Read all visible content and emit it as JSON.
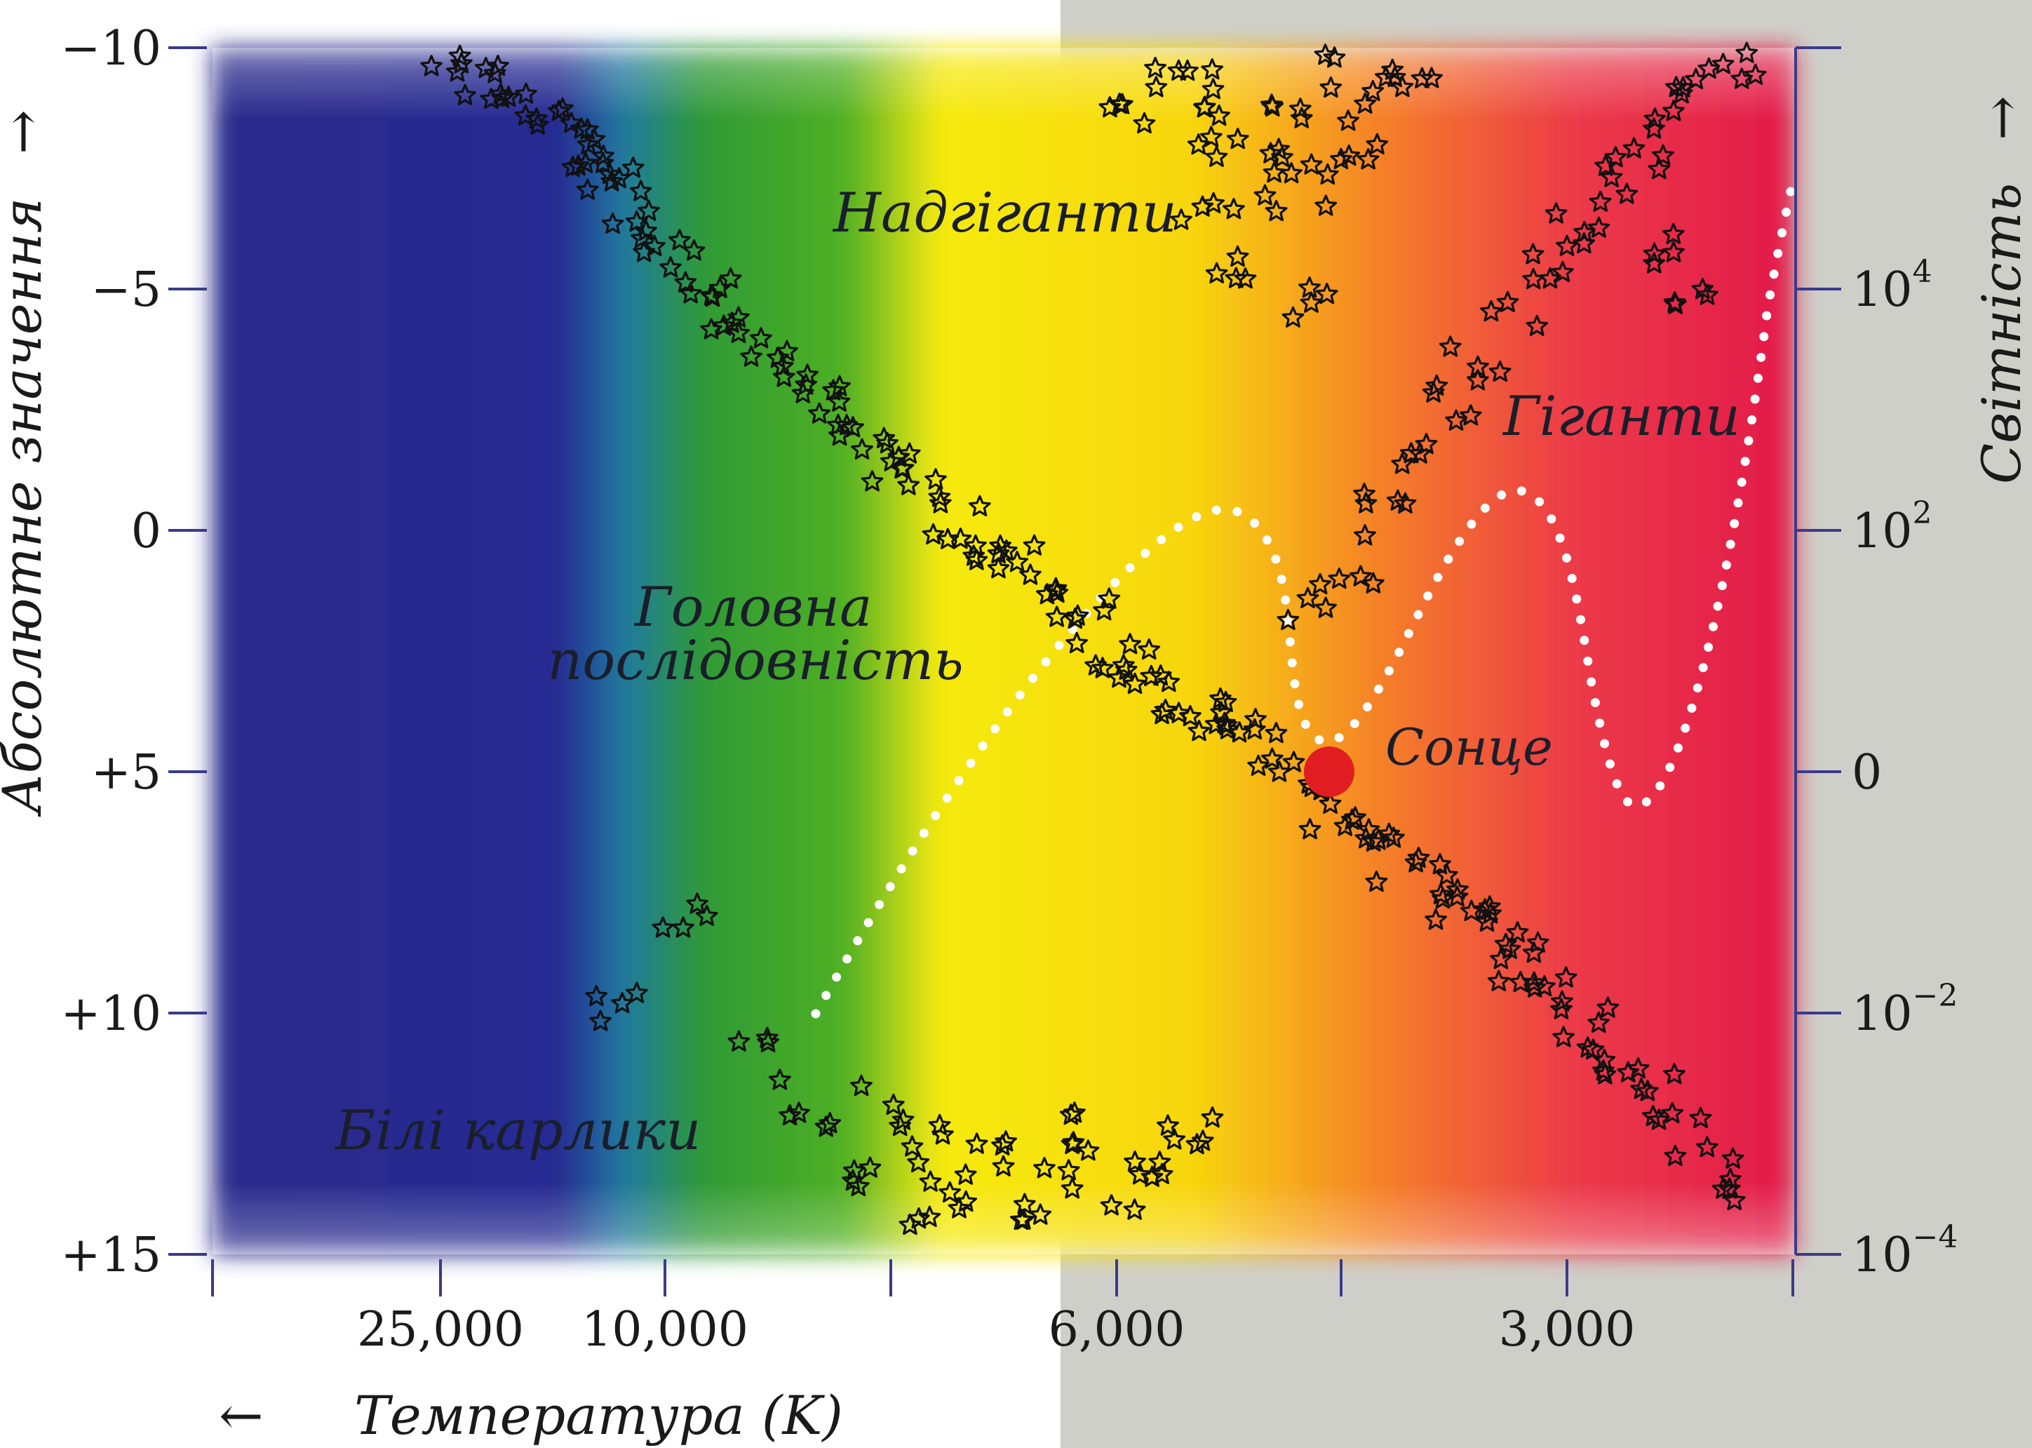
{
  "colors": {
    "spectrum": [
      "#2b2a8c",
      "#262c92",
      "#1f7aa0",
      "#2f9a35",
      "#4fb024",
      "#f6ea10",
      "#f8d60e",
      "#f57f28",
      "#ec3a48",
      "#e21a48"
    ],
    "sun": "#e21d22",
    "right_background": "#cfcfc9",
    "track": "#ffffff",
    "axis_line": "#3a3a8a"
  },
  "chart_data": {
    "type": "scatter",
    "title": "",
    "xlabel": "Температура (K)",
    "ylabel_left": "Абсолютне значення",
    "ylabel_right": "Світність",
    "ylim_abs_mag": [
      -10,
      15
    ],
    "y_inverted": true,
    "x_tick_labels": [
      "25,000",
      "10,000",
      "6,000",
      "3,000"
    ],
    "y_left_ticks": [
      "−10",
      "−5",
      "0",
      "+5",
      "+10",
      "+15"
    ],
    "y_right_ticks": [
      {
        "base": "10",
        "exp": "4"
      },
      {
        "base": "10",
        "exp": "2"
      },
      {
        "base": "0",
        "exp": ""
      },
      {
        "base": "10",
        "exp": "−2"
      },
      {
        "base": "10",
        "exp": "−4"
      }
    ],
    "labels": {
      "supergiants": "Надгіганти",
      "giants": "Гіганти",
      "main_sequence_line1": "Головна",
      "main_sequence_line2": "послідовність",
      "white_dwarfs": "Білі карлики",
      "sun": "Сонце"
    },
    "sun": {
      "abs_mag": 5
    },
    "series": [
      {
        "group": "main_sequence",
        "points": [
          [
            0.15,
            -10
          ],
          [
            0.17,
            -9.3
          ],
          [
            0.19,
            -8.9
          ],
          [
            0.21,
            -8.4
          ],
          [
            0.23,
            -7.9
          ],
          [
            0.24,
            -7.5
          ],
          [
            0.26,
            -7.0
          ],
          [
            0.27,
            -6.4
          ],
          [
            0.29,
            -5.9
          ],
          [
            0.31,
            -5.2
          ],
          [
            0.33,
            -4.6
          ],
          [
            0.35,
            -3.9
          ],
          [
            0.37,
            -3.2
          ],
          [
            0.39,
            -2.6
          ],
          [
            0.41,
            -2.0
          ],
          [
            0.43,
            -1.4
          ],
          [
            0.45,
            -0.9
          ],
          [
            0.47,
            -0.3
          ],
          [
            0.49,
            0.3
          ],
          [
            0.51,
            0.8
          ],
          [
            0.53,
            1.4
          ],
          [
            0.55,
            1.9
          ],
          [
            0.57,
            2.4
          ],
          [
            0.59,
            2.9
          ],
          [
            0.61,
            3.4
          ],
          [
            0.63,
            3.8
          ],
          [
            0.65,
            4.2
          ],
          [
            0.67,
            4.6
          ],
          [
            0.69,
            5.2
          ],
          [
            0.71,
            5.7
          ],
          [
            0.73,
            6.2
          ],
          [
            0.75,
            6.8
          ],
          [
            0.77,
            7.3
          ],
          [
            0.79,
            7.9
          ],
          [
            0.81,
            8.4
          ],
          [
            0.83,
            9.0
          ],
          [
            0.85,
            9.7
          ],
          [
            0.87,
            10.3
          ],
          [
            0.89,
            11.0
          ],
          [
            0.91,
            11.7
          ],
          [
            0.93,
            12.5
          ],
          [
            0.96,
            13.5
          ]
        ]
      },
      {
        "group": "supergiants",
        "points": [
          [
            0.58,
            -8.8
          ],
          [
            0.6,
            -9.5
          ],
          [
            0.62,
            -8.2
          ],
          [
            0.64,
            -9.1
          ],
          [
            0.66,
            -7.6
          ],
          [
            0.68,
            -8.7
          ],
          [
            0.7,
            -9.6
          ],
          [
            0.72,
            -8.0
          ],
          [
            0.63,
            -6.3
          ],
          [
            0.67,
            -6.9
          ],
          [
            0.71,
            -7.2
          ],
          [
            0.65,
            -5.6
          ],
          [
            0.69,
            -4.7
          ],
          [
            0.74,
            -8.9
          ],
          [
            0.76,
            -9.7
          ]
        ]
      },
      {
        "group": "giants",
        "points": [
          [
            0.69,
            1.5
          ],
          [
            0.72,
            0.6
          ],
          [
            0.74,
            -0.4
          ],
          [
            0.76,
            -1.5
          ],
          [
            0.78,
            -2.6
          ],
          [
            0.8,
            -3.6
          ],
          [
            0.82,
            -4.7
          ],
          [
            0.84,
            -5.5
          ],
          [
            0.86,
            -6.4
          ],
          [
            0.88,
            -7.2
          ],
          [
            0.9,
            -7.9
          ],
          [
            0.92,
            -8.6
          ],
          [
            0.94,
            -9.2
          ],
          [
            0.96,
            -9.7
          ],
          [
            0.93,
            -4.6
          ],
          [
            0.91,
            -6.0
          ]
        ]
      },
      {
        "group": "white_dwarfs",
        "points": [
          [
            0.38,
            12.5
          ],
          [
            0.4,
            13.5
          ],
          [
            0.42,
            12.0
          ],
          [
            0.44,
            14.0
          ],
          [
            0.46,
            12.8
          ],
          [
            0.48,
            13.7
          ],
          [
            0.5,
            13.0
          ],
          [
            0.52,
            14.2
          ],
          [
            0.54,
            13.2
          ],
          [
            0.56,
            12.3
          ],
          [
            0.58,
            13.8
          ],
          [
            0.6,
            13.0
          ],
          [
            0.62,
            12.5
          ],
          [
            0.35,
            11.0
          ],
          [
            0.26,
            10.1
          ],
          [
            0.3,
            8.0
          ]
        ]
      }
    ]
  }
}
